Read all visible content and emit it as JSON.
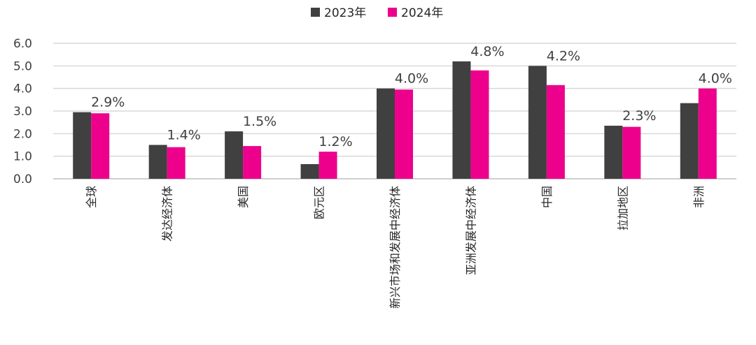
{
  "chart_data": {
    "type": "bar",
    "categories": [
      "全球",
      "发达经济体",
      "美国",
      "欧元区",
      "新兴市场和发展中经济体",
      "亚洲发展中经济体",
      "中国",
      "拉加地区",
      "非洲"
    ],
    "series": [
      {
        "name": "2023年",
        "color": "#404040",
        "values": [
          2.95,
          1.5,
          2.1,
          0.65,
          4.0,
          5.2,
          5.0,
          2.35,
          3.35
        ]
      },
      {
        "name": "2024年",
        "color": "#ED008C",
        "values": [
          2.9,
          1.4,
          1.45,
          1.2,
          3.95,
          4.8,
          4.15,
          2.3,
          4.0
        ]
      }
    ],
    "data_labels": [
      "2.9%",
      "1.4%",
      "1.5%",
      "1.2%",
      "4.0%",
      "4.8%",
      "4.2%",
      "2.3%",
      "4.0%"
    ],
    "yticks": [
      "0.0",
      "1.0",
      "2.0",
      "3.0",
      "4.0",
      "5.0",
      "6.0"
    ],
    "ylim": [
      0,
      6
    ],
    "grid": true,
    "legend_position": "top-center"
  }
}
